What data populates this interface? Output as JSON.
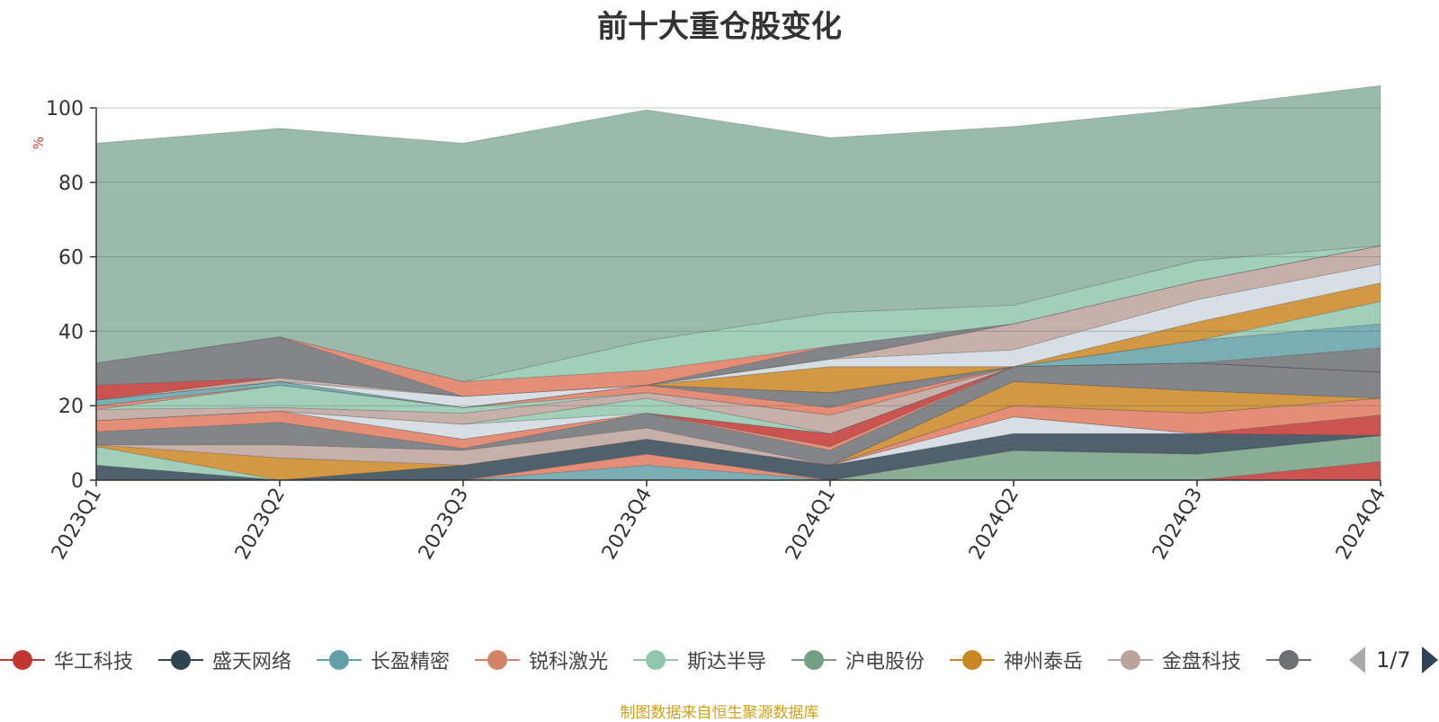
{
  "chart_data": {
    "type": "area",
    "title": "前十大重仓股变化",
    "ylabel": "%",
    "ylim": [
      0,
      100
    ],
    "yticks": [
      0,
      20,
      40,
      60,
      80,
      100
    ],
    "grid": true,
    "categories": [
      "2023Q1",
      "2023Q2",
      "2023Q3",
      "2023Q4",
      "2024Q1",
      "2024Q2",
      "2024Q3",
      "2024Q4"
    ],
    "series": [
      {
        "name": "华工科技",
        "color": "#c23531",
        "values": [
          0,
          0,
          0,
          0,
          0,
          0,
          0,
          5
        ]
      },
      {
        "name": "沪电股份",
        "color": "#749f83",
        "values": [
          0,
          0,
          0,
          0,
          0,
          8,
          7,
          7
        ]
      },
      {
        "name": "长盈精密",
        "color": "#61a0a8",
        "values": [
          0,
          0,
          0,
          4,
          0,
          0,
          0,
          0
        ]
      },
      {
        "name": "锐科激光",
        "color": "#e07a5f",
        "values": [
          0,
          0,
          0,
          3,
          0,
          0,
          0,
          0
        ]
      },
      {
        "name": "盛天网络",
        "color": "#2f4554",
        "values": [
          4,
          0,
          4,
          4,
          4,
          4.5,
          5.5,
          0
        ]
      },
      {
        "name": "",
        "color": "#ca8622",
        "values": [
          0,
          0,
          0,
          0,
          0,
          0,
          0,
          0
        ]
      },
      {
        "name": "",
        "color": "#d0d9e0",
        "values": [
          0,
          0,
          0,
          0,
          0,
          4.5,
          0,
          0
        ]
      },
      {
        "name": "",
        "color": "#c23531",
        "values": [
          0,
          0,
          0,
          0,
          0,
          0,
          0,
          5.5
        ]
      },
      {
        "name": "",
        "color": "#e07a5f",
        "values": [
          0,
          0,
          0,
          0,
          0,
          3,
          5.5,
          4.5
        ]
      },
      {
        "name": "斯达半导",
        "color": "#91c7ae",
        "values": [
          5,
          0,
          0,
          0,
          0,
          0,
          0,
          0
        ]
      },
      {
        "name": "神州泰岳",
        "color": "#ca8622",
        "values": [
          0.5,
          6,
          0,
          0,
          0,
          6.5,
          6,
          0
        ]
      },
      {
        "name": "金盘科技",
        "color": "#bda29a",
        "values": [
          0,
          3.5,
          4,
          3,
          0,
          0,
          0,
          0
        ]
      },
      {
        "name": "",
        "color": "#6e7074",
        "values": [
          3.5,
          6,
          0.5,
          4,
          4,
          4,
          7.5,
          7
        ]
      },
      {
        "name": "",
        "color": "#e07a5f",
        "values": [
          3,
          3,
          2.5,
          0,
          1,
          0,
          0,
          0
        ]
      },
      {
        "name": "",
        "color": "#c23531",
        "values": [
          0,
          0,
          0,
          0,
          3.5,
          0,
          0,
          0
        ]
      },
      {
        "name": "",
        "color": "#d0d9e0",
        "values": [
          0,
          0,
          4,
          0,
          0,
          0,
          0,
          0
        ]
      },
      {
        "name": "",
        "color": "#91c7ae",
        "values": [
          0,
          0,
          0,
          4,
          0,
          0,
          0,
          0
        ]
      },
      {
        "name": "",
        "color": "#bda29a",
        "values": [
          3,
          1,
          3,
          1.5,
          5,
          0,
          0,
          0
        ]
      },
      {
        "name": "",
        "color": "#91c7ae",
        "values": [
          0,
          6,
          1.5,
          0,
          0,
          0,
          0,
          0
        ]
      },
      {
        "name": "",
        "color": "#e07a5f",
        "values": [
          1,
          0,
          0,
          2,
          2,
          0,
          0,
          0
        ]
      },
      {
        "name": "",
        "color": "#6e7074",
        "values": [
          0,
          0,
          0,
          0,
          4,
          0,
          0,
          6.5
        ]
      },
      {
        "name": "",
        "color": "#61a0a8",
        "values": [
          1.5,
          1,
          0,
          0,
          0,
          0,
          6,
          6.5
        ]
      },
      {
        "name": "",
        "color": "#91c7ae",
        "values": [
          0,
          0,
          0,
          0,
          0,
          0,
          0,
          6
        ]
      },
      {
        "name": "",
        "color": "#ca8622",
        "values": [
          0,
          0,
          0,
          0,
          7,
          0,
          5,
          5
        ]
      },
      {
        "name": "",
        "color": "#d0d9e0",
        "values": [
          0,
          0,
          3,
          0,
          2,
          4.5,
          6,
          5
        ]
      },
      {
        "name": "",
        "color": "#bda29a",
        "values": [
          0,
          1,
          0,
          0,
          0,
          7,
          5,
          5
        ]
      },
      {
        "name": "",
        "color": "#c23531",
        "values": [
          4,
          0,
          0,
          0,
          0,
          0,
          0,
          0
        ]
      },
      {
        "name": "",
        "color": "#6e7074",
        "values": [
          6,
          11,
          0,
          0,
          3.5,
          0,
          0,
          0
        ]
      },
      {
        "name": "",
        "color": "#e07a5f",
        "values": [
          0,
          0,
          4,
          4,
          0,
          0,
          0,
          0
        ]
      },
      {
        "name": "",
        "color": "#91c7ae",
        "values": [
          0,
          0,
          0,
          8,
          9,
          5,
          5.5,
          0
        ]
      },
      {
        "name": "",
        "color": "#8fb3a3",
        "values": [
          59,
          56,
          64,
          62,
          47,
          48,
          41,
          43
        ]
      }
    ]
  },
  "legend": {
    "items": [
      {
        "label": "华工科技",
        "color": "#c23531"
      },
      {
        "label": "盛天网络",
        "color": "#2f4554"
      },
      {
        "label": "长盈精密",
        "color": "#61a0a8"
      },
      {
        "label": "锐科激光",
        "color": "#d48265"
      },
      {
        "label": "斯达半导",
        "color": "#91c7ae"
      },
      {
        "label": "沪电股份",
        "color": "#749f83"
      },
      {
        "label": "神州泰岳",
        "color": "#ca8622"
      },
      {
        "label": "金盘科技",
        "color": "#bda29a"
      },
      {
        "label": "",
        "color": "#6e7074"
      }
    ]
  },
  "pager": {
    "text": "1/7"
  },
  "source": "制图数据来自恒生聚源数据库"
}
